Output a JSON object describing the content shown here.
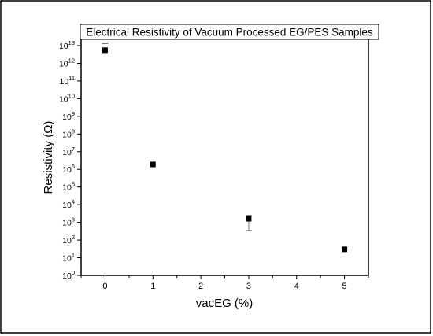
{
  "chart_data": {
    "type": "scatter",
    "title": "Electrical Resistivity of Vacuum Processed EG/PES Samples",
    "xlabel": "vacEG (%)",
    "ylabel": "Resistivity (Ω)",
    "xlim": [
      -0.5,
      5.5
    ],
    "ylim": [
      1,
      10000000000000.0
    ],
    "yscale": "log",
    "grid": false,
    "legend": "none",
    "x_ticks": [
      0,
      1,
      2,
      3,
      4,
      5
    ],
    "x_tick_labels": [
      "0",
      "1",
      "2",
      "3",
      "4",
      "5"
    ],
    "y_tick_exponents": [
      0,
      1,
      2,
      3,
      4,
      5,
      6,
      7,
      8,
      9,
      10,
      11,
      12,
      13
    ],
    "y_tick_base": "10",
    "series": [
      {
        "marker": "square",
        "color": "#000000",
        "x": [
          0,
          1,
          3,
          5
        ],
        "y": [
          5500000000000.0,
          1900000.0,
          1600.0,
          30
        ],
        "error_upper": [
          13000000000000.0,
          1900000.0,
          2500.0,
          30
        ],
        "error_lower": [
          5500000000000.0,
          1900000.0,
          350,
          30
        ]
      }
    ]
  }
}
